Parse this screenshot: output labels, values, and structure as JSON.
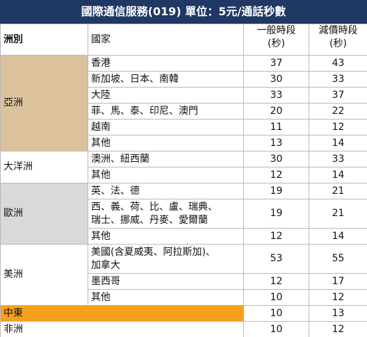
{
  "title": "國際通信服務(019) 單位：5元/通話秒數",
  "header": {
    "region": "洲別",
    "country": "國家",
    "normal": [
      "一般時段",
      "(秒)"
    ],
    "discount": [
      "減價時段",
      "(秒)"
    ]
  },
  "regions": [
    {
      "name": "亞洲",
      "color": "#dcc29c",
      "rows": [
        {
          "country": [
            "香港"
          ],
          "normal": 37,
          "discount": 43
        },
        {
          "country": [
            "新加坡、日本、南韓"
          ],
          "normal": 30,
          "discount": 33
        },
        {
          "country": [
            "大陸"
          ],
          "normal": 33,
          "discount": 37
        },
        {
          "country": [
            "菲、馬、泰、印尼、澳門"
          ],
          "normal": 20,
          "discount": 22
        },
        {
          "country": [
            "越南"
          ],
          "normal": 11,
          "discount": 12
        },
        {
          "country": [
            "其他"
          ],
          "normal": 13,
          "discount": 14
        }
      ]
    },
    {
      "name": "大洋洲",
      "color": "#ffffff",
      "rows": [
        {
          "country": [
            "澳洲、紐西蘭"
          ],
          "normal": 30,
          "discount": 33
        },
        {
          "country": [
            "其他"
          ],
          "normal": 12,
          "discount": 14
        }
      ]
    },
    {
      "name": "歐洲",
      "color": "#d9d9d9",
      "rows": [
        {
          "country": [
            "英、法、德"
          ],
          "normal": 19,
          "discount": 21
        },
        {
          "country": [
            "西、義、荷、比、盧、瑞典、",
            "瑞士、挪威、丹麥、愛爾蘭"
          ],
          "normal": 19,
          "discount": 21
        },
        {
          "country": [
            "其他"
          ],
          "normal": 12,
          "discount": 14
        }
      ]
    },
    {
      "name": "美洲",
      "color": "#ffffff",
      "rows": [
        {
          "country": [
            "美國(含夏威夷、阿拉斯加)、",
            "加拿大"
          ],
          "normal": 53,
          "discount": 55
        },
        {
          "country": [
            "墨西哥"
          ],
          "normal": 12,
          "discount": 17
        },
        {
          "country": [
            "其他"
          ],
          "normal": 10,
          "discount": 12
        }
      ]
    },
    {
      "name": "中東",
      "color": "#f7a01e",
      "rows": [
        {
          "normal": 10,
          "discount": 13
        }
      ]
    },
    {
      "name": "非洲",
      "color": "#ffffff",
      "rows": [
        {
          "normal": 10,
          "discount": 12
        }
      ]
    }
  ]
}
